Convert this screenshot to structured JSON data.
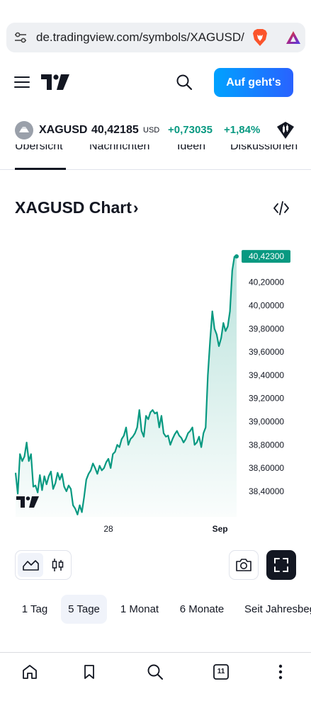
{
  "browser": {
    "url": "de.tradingview.com/symbols/XAGUSD/",
    "tabs_count": "11"
  },
  "header": {
    "cta_label": "Auf geht's"
  },
  "ticker": {
    "symbol": "XAGUSD",
    "price": "40,42185",
    "currency": "USD",
    "change": "+0,73035",
    "change_pct": "+1,84%",
    "accent_color": "#089981"
  },
  "tabs": [
    "Übersicht",
    "Nachrichten",
    "Ideen",
    "Diskussionen"
  ],
  "chart_section": {
    "title": "XAGUSD Chart",
    "chevron": "›"
  },
  "chart_data": {
    "type": "area",
    "last_price_label": "40,42300",
    "y_ticks": [
      "40,20000",
      "40,00000",
      "39,80000",
      "39,60000",
      "39,40000",
      "39,20000",
      "39,00000",
      "38,80000",
      "38,60000",
      "38,40000"
    ],
    "x_ticks": [
      "28",
      "Sep"
    ],
    "ylim": [
      38.18,
      40.57
    ],
    "line_color": "#089981",
    "series": [
      {
        "x": [
          0,
          1,
          2,
          3,
          4,
          5,
          6,
          7,
          8,
          9,
          10,
          11,
          12,
          13,
          14,
          15,
          16,
          17,
          18,
          19,
          20,
          21,
          22,
          23,
          24,
          25,
          26,
          27,
          28,
          29,
          30,
          31,
          32,
          33,
          34,
          35,
          36,
          37,
          38,
          39,
          40,
          41,
          42,
          43,
          44,
          45,
          46,
          47,
          48,
          49,
          50,
          51,
          52,
          53,
          54,
          55,
          56,
          57,
          58,
          59,
          60,
          61,
          62,
          63,
          64,
          65,
          66,
          67,
          68,
          69,
          70,
          71,
          72,
          73,
          74,
          75,
          76,
          77,
          78,
          79,
          80,
          81,
          82,
          83,
          84,
          85,
          86,
          87,
          88,
          89,
          90,
          91,
          92,
          93,
          94,
          95,
          96,
          97,
          98,
          99,
          100
        ],
        "values": [
          38.56,
          38.38,
          38.72,
          38.66,
          38.7,
          38.82,
          38.66,
          38.72,
          38.44,
          38.45,
          38.39,
          38.54,
          38.41,
          38.53,
          38.46,
          38.53,
          38.57,
          38.42,
          38.47,
          38.56,
          38.5,
          38.55,
          38.44,
          38.4,
          38.45,
          38.42,
          38.28,
          38.25,
          38.2,
          38.28,
          38.22,
          38.35,
          38.5,
          38.55,
          38.58,
          38.64,
          38.6,
          38.55,
          38.62,
          38.58,
          38.6,
          38.65,
          38.68,
          38.6,
          38.72,
          38.74,
          38.8,
          38.78,
          38.85,
          38.88,
          38.95,
          38.8,
          38.85,
          38.87,
          38.9,
          38.95,
          39.1,
          38.92,
          38.87,
          39.05,
          39.02,
          39.08,
          39.1,
          39.07,
          39.08,
          38.95,
          39.05,
          38.9,
          38.87,
          38.88,
          38.8,
          38.85,
          38.89,
          38.92,
          38.88,
          38.86,
          38.82,
          38.85,
          38.9,
          38.92,
          38.95,
          38.8,
          38.82,
          38.87,
          38.78,
          38.9,
          38.95,
          39.4,
          39.7,
          39.95,
          39.8,
          39.75,
          39.65,
          39.72,
          39.85,
          39.78,
          39.82,
          39.95,
          40.3,
          40.42,
          40.423
        ]
      }
    ]
  },
  "controls": {
    "ranges": [
      "1 Tag",
      "5 Tage",
      "1 Monat",
      "6 Monate",
      "Seit Jahresbeginn"
    ],
    "active_range": "5 Tage"
  }
}
